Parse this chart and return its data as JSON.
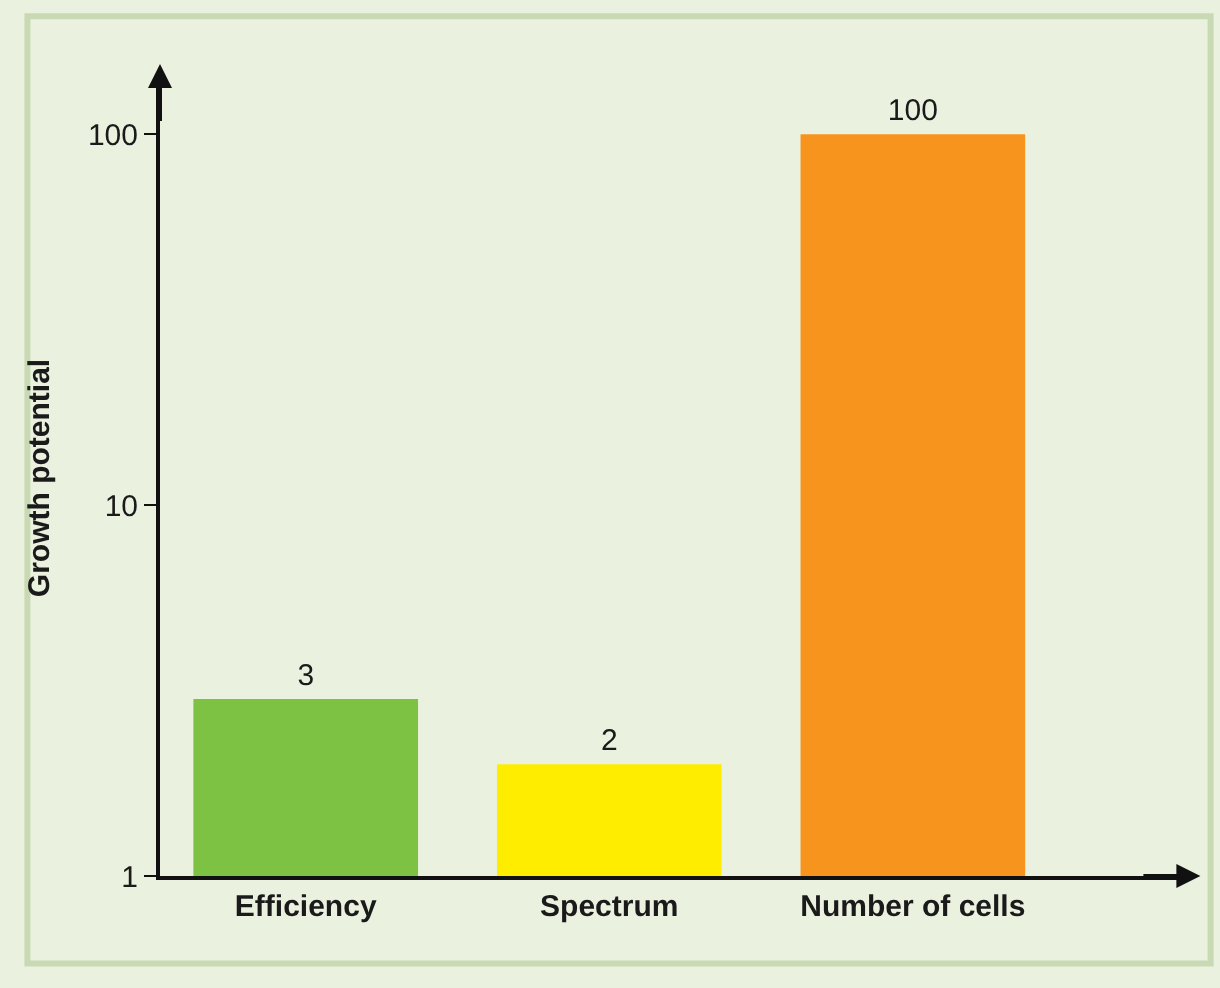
{
  "chart_data": {
    "type": "bar",
    "ylabel": "Growth potential",
    "categories": [
      "Efficiency",
      "Spectrum",
      "Number of cells"
    ],
    "values": [
      3,
      2,
      100
    ],
    "colors": [
      "#7dc242",
      "#ffed00",
      "#f7941d"
    ],
    "log": true,
    "ylim": [
      1,
      140
    ],
    "yticks": [
      1,
      10,
      100
    ],
    "data_labels": true
  }
}
